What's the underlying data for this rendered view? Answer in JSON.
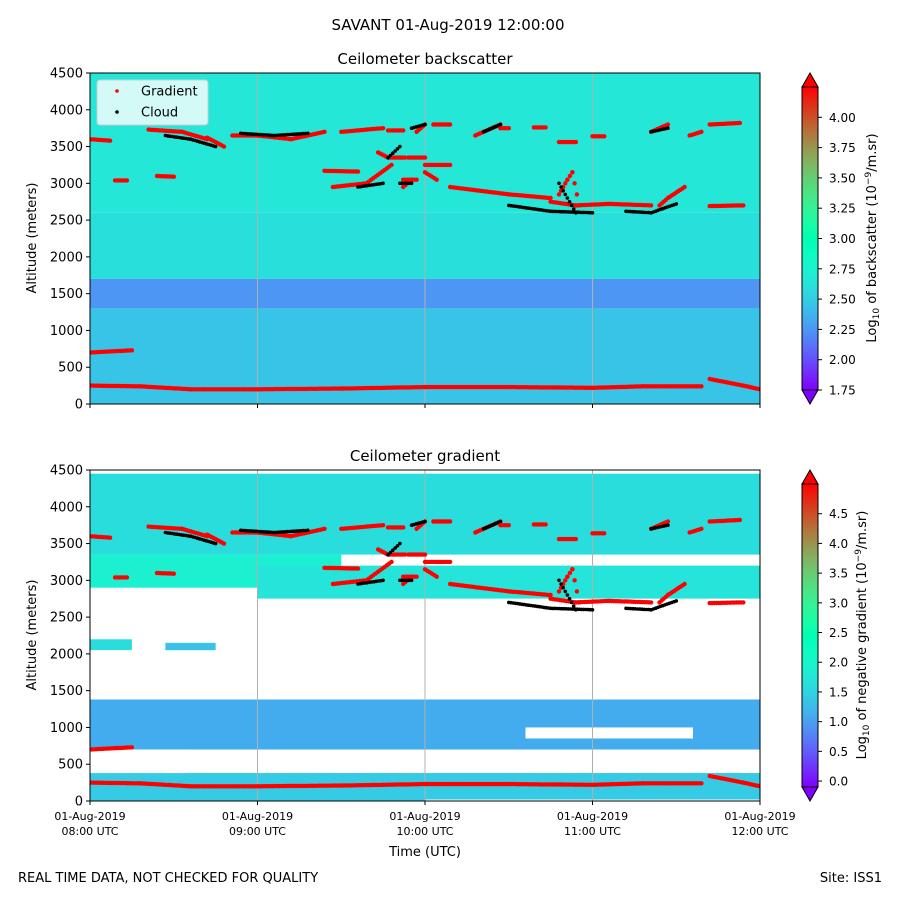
{
  "figure": {
    "suptitle": "SAVANT 01-Aug-2019 12:00:00",
    "footer_left": "REAL TIME DATA, NOT CHECKED FOR QUALITY",
    "footer_right": "Site: ISS1"
  },
  "chart_data": [
    {
      "type": "heatmap",
      "title": "Ceilometer backscatter",
      "xlabel": "",
      "ylabel": "Altitude (meters)",
      "xlim_hours_utc": [
        8,
        12
      ],
      "ylim": [
        0,
        4500
      ],
      "yticks": [
        "0",
        "500",
        "1000",
        "1500",
        "2000",
        "2500",
        "3000",
        "3500",
        "4000",
        "4500"
      ],
      "x_grid": true,
      "legend": {
        "position": "top-left",
        "entries": [
          {
            "label": "Gradient",
            "color": "#ff0000"
          },
          {
            "label": "Cloud",
            "color": "#000000"
          }
        ]
      },
      "colorbar": {
        "label": "Log10 of backscatter (10^-9/m.sr)",
        "label_main": "Log",
        "label_sub": "10",
        "label_rest": " of backscatter (10",
        "label_sup": "−9",
        "label_end": "/m.sr)",
        "min": 1.75,
        "max": 4.25,
        "ticks": [
          "1.75",
          "2.00",
          "2.25",
          "2.50",
          "2.75",
          "3.00",
          "3.25",
          "3.50",
          "3.75",
          "4.00"
        ],
        "tick_values": [
          1.75,
          2.0,
          2.25,
          2.5,
          2.75,
          3.0,
          3.25,
          3.5,
          3.75,
          4.0
        ]
      },
      "background_layers": [
        {
          "bottom": 0,
          "top": 1300,
          "value": 2.45
        },
        {
          "bottom": 1300,
          "top": 1700,
          "value": 2.25
        },
        {
          "bottom": 1700,
          "top": 2600,
          "value": 2.6
        },
        {
          "bottom": 2600,
          "top": 4500,
          "value": 2.65
        }
      ],
      "gradient_series": [
        {
          "x": [
            8.0,
            8.25
          ],
          "y": [
            700,
            730
          ]
        },
        {
          "x": [
            8.0,
            8.3,
            8.6,
            9.0,
            9.5,
            10.0,
            10.5,
            11.0,
            11.3,
            11.65
          ],
          "y": [
            250,
            240,
            200,
            200,
            210,
            230,
            230,
            220,
            240,
            240
          ]
        },
        {
          "x": [
            11.7,
            11.9,
            12.0
          ],
          "y": [
            340,
            250,
            200
          ]
        },
        {
          "x": [
            8.0,
            8.12
          ],
          "y": [
            3600,
            3580
          ]
        },
        {
          "x": [
            8.15,
            8.22
          ],
          "y": [
            3040,
            3040
          ]
        },
        {
          "x": [
            8.4,
            8.5
          ],
          "y": [
            3100,
            3090
          ]
        },
        {
          "x": [
            8.35,
            8.55,
            8.7
          ],
          "y": [
            3730,
            3700,
            3600
          ]
        },
        {
          "x": [
            8.7,
            8.8
          ],
          "y": [
            3620,
            3500
          ]
        },
        {
          "x": [
            8.85,
            9.0,
            9.2,
            9.4
          ],
          "y": [
            3650,
            3650,
            3600,
            3700
          ]
        },
        {
          "x": [
            9.4,
            9.6
          ],
          "y": [
            3170,
            3160
          ]
        },
        {
          "x": [
            9.45,
            9.65,
            9.8
          ],
          "y": [
            2950,
            3000,
            3250
          ]
        },
        {
          "x": [
            9.5,
            9.75
          ],
          "y": [
            3700,
            3750
          ]
        },
        {
          "x": [
            9.72,
            9.78,
            9.88
          ],
          "y": [
            3420,
            3350,
            3350
          ]
        },
        {
          "x": [
            9.78,
            9.87
          ],
          "y": [
            3720,
            3720
          ]
        },
        {
          "x": [
            9.87,
            9.95
          ],
          "y": [
            3050,
            3050
          ]
        },
        {
          "x": [
            9.87,
            9.92
          ],
          "y": [
            2950,
            3050
          ]
        },
        {
          "x": [
            9.9,
            10.0
          ],
          "y": [
            3350,
            3350
          ]
        },
        {
          "x": [
            9.95,
            10.0
          ],
          "y": [
            3700,
            3800
          ]
        },
        {
          "x": [
            10.0,
            10.07
          ],
          "y": [
            3150,
            3050
          ]
        },
        {
          "x": [
            10.05,
            10.15
          ],
          "y": [
            3800,
            3800
          ]
        },
        {
          "x": [
            10.0,
            10.15
          ],
          "y": [
            3250,
            3250
          ]
        },
        {
          "x": [
            10.3,
            10.45
          ],
          "y": [
            3650,
            3800
          ]
        },
        {
          "x": [
            10.45,
            10.5
          ],
          "y": [
            3750,
            3750
          ]
        },
        {
          "x": [
            10.15,
            10.5,
            10.75
          ],
          "y": [
            2950,
            2850,
            2800
          ]
        },
        {
          "x": [
            10.75,
            10.9,
            11.1,
            11.35
          ],
          "y": [
            2750,
            2700,
            2720,
            2700
          ]
        },
        {
          "x": [
            10.8,
            10.85,
            10.88,
            10.92
          ],
          "y": [
            2850,
            3050,
            3150,
            2700
          ]
        },
        {
          "x": [
            11.4,
            11.45,
            11.55
          ],
          "y": [
            2700,
            2800,
            2950
          ]
        },
        {
          "x": [
            11.35,
            11.45
          ],
          "y": [
            3700,
            3800
          ]
        },
        {
          "x": [
            11.58,
            11.65
          ],
          "y": [
            3650,
            3700
          ]
        },
        {
          "x": [
            11.7,
            11.9
          ],
          "y": [
            2690,
            2700
          ]
        },
        {
          "x": [
            11.7,
            11.88
          ],
          "y": [
            3800,
            3820
          ]
        },
        {
          "x": [
            11.0,
            11.07
          ],
          "y": [
            3640,
            3640
          ]
        },
        {
          "x": [
            10.8,
            10.9
          ],
          "y": [
            3560,
            3560
          ]
        },
        {
          "x": [
            10.65,
            10.72
          ],
          "y": [
            3760,
            3760
          ]
        }
      ],
      "cloud_series": [
        {
          "x": [
            8.45,
            8.6,
            8.75
          ],
          "y": [
            3650,
            3600,
            3500
          ]
        },
        {
          "x": [
            8.9,
            9.1,
            9.3
          ],
          "y": [
            3680,
            3650,
            3680
          ]
        },
        {
          "x": [
            9.6,
            9.75
          ],
          "y": [
            2950,
            3000
          ]
        },
        {
          "x": [
            9.78,
            9.85
          ],
          "y": [
            3350,
            3500
          ]
        },
        {
          "x": [
            9.85,
            9.92
          ],
          "y": [
            3000,
            3000
          ]
        },
        {
          "x": [
            9.92,
            10.0
          ],
          "y": [
            3750,
            3800
          ]
        },
        {
          "x": [
            10.35,
            10.45
          ],
          "y": [
            3700,
            3800
          ]
        },
        {
          "x": [
            10.5,
            10.75,
            11.0
          ],
          "y": [
            2700,
            2620,
            2600
          ]
        },
        {
          "x": [
            10.8,
            10.9
          ],
          "y": [
            3000,
            2600
          ]
        },
        {
          "x": [
            11.2,
            11.35,
            11.5
          ],
          "y": [
            2620,
            2600,
            2720
          ]
        },
        {
          "x": [
            11.35,
            11.45
          ],
          "y": [
            3700,
            3750
          ]
        }
      ]
    },
    {
      "type": "heatmap",
      "title": "Ceilometer gradient",
      "xlabel": "Time (UTC)",
      "ylabel": "Altitude (meters)",
      "xlim_hours_utc": [
        8,
        12
      ],
      "ylim": [
        0,
        4500
      ],
      "yticks": [
        "0",
        "500",
        "1000",
        "1500",
        "2000",
        "2500",
        "3000",
        "3500",
        "4000",
        "4500"
      ],
      "xticks": [
        {
          "hour": 8,
          "date": "01-Aug-2019",
          "time": "08:00 UTC"
        },
        {
          "hour": 9,
          "date": "01-Aug-2019",
          "time": "09:00 UTC"
        },
        {
          "hour": 10,
          "date": "01-Aug-2019",
          "time": "10:00 UTC"
        },
        {
          "hour": 11,
          "date": "01-Aug-2019",
          "time": "11:00 UTC"
        },
        {
          "hour": 12,
          "date": "01-Aug-2019",
          "time": "12:00 UTC"
        }
      ],
      "x_grid": true,
      "colorbar": {
        "label": "Log10 of negative gradient (10^-9/m.sr)",
        "label_main": "Log",
        "label_sub": "10",
        "label_rest": " of negative gradient (10",
        "label_sup": "−9",
        "label_end": "/m.sr)",
        "min": -0.1,
        "max": 5.0,
        "ticks": [
          "0.0",
          "0.5",
          "1.0",
          "1.5",
          "2.0",
          "2.5",
          "3.0",
          "3.5",
          "4.0",
          "4.5"
        ],
        "tick_values": [
          0.0,
          0.5,
          1.0,
          1.5,
          2.0,
          2.5,
          3.0,
          3.5,
          4.0,
          4.5
        ]
      },
      "data_bands": [
        {
          "x0": 8.0,
          "x1": 12.0,
          "bottom": 0,
          "top": 380,
          "value": 1.4
        },
        {
          "x0": 8.0,
          "x1": 12.0,
          "bottom": 700,
          "top": 1380,
          "value": 1.1
        },
        {
          "x0": 8.0,
          "x1": 8.25,
          "bottom": 2050,
          "top": 2200,
          "value": 1.6
        },
        {
          "x0": 8.45,
          "x1": 8.75,
          "bottom": 2000,
          "top": 2150,
          "value": 1.3
        },
        {
          "x0": 8.0,
          "x1": 9.5,
          "bottom": 2900,
          "top": 3350,
          "value": 1.9
        },
        {
          "x0": 9.0,
          "x1": 12.0,
          "bottom": 2750,
          "top": 3200,
          "value": 1.7
        },
        {
          "x0": 8.0,
          "x1": 12.0,
          "bottom": 3350,
          "top": 4450,
          "value": 1.6
        }
      ],
      "data_gaps": [
        {
          "x0": 8.0,
          "x1": 12.0,
          "bottom": 1380,
          "top": 2050
        },
        {
          "x0": 8.0,
          "x1": 12.0,
          "bottom": 2200,
          "top": 2750
        },
        {
          "x0": 8.0,
          "x1": 8.6,
          "bottom": 380,
          "top": 700
        },
        {
          "x0": 10.6,
          "x1": 11.6,
          "bottom": 850,
          "top": 1000
        },
        {
          "x0": 10.0,
          "x1": 12.0,
          "bottom": 20,
          "top": 0
        }
      ],
      "gradient_series": "same as backscatter panel",
      "cloud_series": "same as backscatter panel"
    }
  ]
}
